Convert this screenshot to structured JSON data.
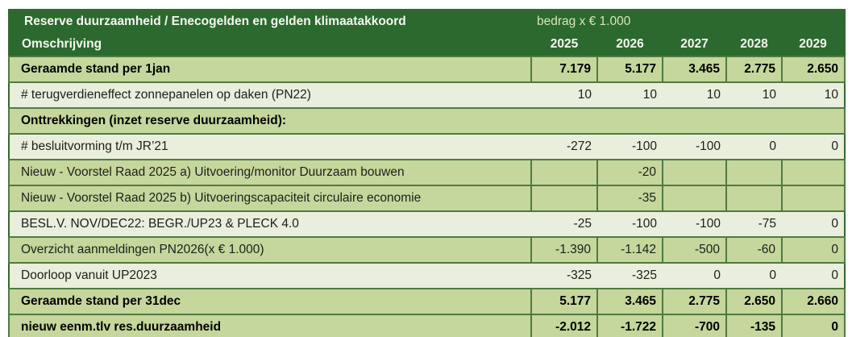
{
  "palette": {
    "header_bg": "#2c692e",
    "green_row_bg": "#c5d79c",
    "pale_row_bg": "#e9efdc",
    "cell_border": "#4e7b41",
    "outer_border": "#34672f",
    "header_text": "#f6f8f0",
    "unit_note_text": "#d9e4c2"
  },
  "header": {
    "title": "Reserve duurzaamheid / Enecogelden en gelden klimaatakkoord",
    "unit_note": "bedrag x € 1.000",
    "label_col_header": "Omschrijving",
    "year_columns": [
      "2025",
      "2026",
      "2027",
      "2028",
      "2029"
    ]
  },
  "rows": [
    {
      "label": "Geraamde stand per 1jan",
      "style": "green",
      "bold": true,
      "values": [
        "7.179",
        "5.177",
        "3.465",
        "2.775",
        "2.650"
      ]
    },
    {
      "label": "# terugverdieneffect zonnepanelen op daken (PN22)",
      "style": "pale",
      "bold": false,
      "values": [
        "10",
        "10",
        "10",
        "10",
        "10"
      ]
    },
    {
      "label": "Onttrekkingen (inzet reserve duurzaamheid):",
      "style": "section",
      "bold": true,
      "values": null
    },
    {
      "label": "# besluitvorming t/m JR’21",
      "style": "pale",
      "bold": false,
      "values": [
        "-272",
        "-100",
        "-100",
        "0",
        "0"
      ]
    },
    {
      "label": "Nieuw - Voorstel Raad 2025 a) Uitvoering/monitor Duurzaam bouwen",
      "style": "green",
      "bold": false,
      "values": [
        "",
        "-20",
        "",
        "",
        ""
      ]
    },
    {
      "label": "Nieuw - Voorstel Raad 2025 b) Uitvoeringscapaciteit circulaire economie",
      "style": "green",
      "bold": false,
      "values": [
        "",
        "-35",
        "",
        "",
        ""
      ]
    },
    {
      "label": "BESL.V. NOV/DEC22: BEGR./UP23 & PLECK 4.0",
      "style": "pale",
      "bold": false,
      "values": [
        "-25",
        "-100",
        "-100",
        "-75",
        "0"
      ]
    },
    {
      "label": "Overzicht aanmeldingen PN2026(x € 1.000)",
      "style": "green",
      "bold": false,
      "values": [
        "-1.390",
        "-1.142",
        "-500",
        "-60",
        "0"
      ]
    },
    {
      "label": "Doorloop vanuit UP2023",
      "style": "pale",
      "bold": false,
      "values": [
        "-325",
        "-325",
        "0",
        "0",
        "0"
      ]
    },
    {
      "label": "Geraamde stand per 31dec",
      "style": "green",
      "bold": true,
      "values": [
        "5.177",
        "3.465",
        "2.775",
        "2.650",
        "2.660"
      ]
    },
    {
      "label": "nieuw eenm.tlv res.duurzaamheid",
      "style": "green",
      "bold": true,
      "values": [
        "-2.012",
        "-1.722",
        "-700",
        "-135",
        "0"
      ]
    }
  ]
}
